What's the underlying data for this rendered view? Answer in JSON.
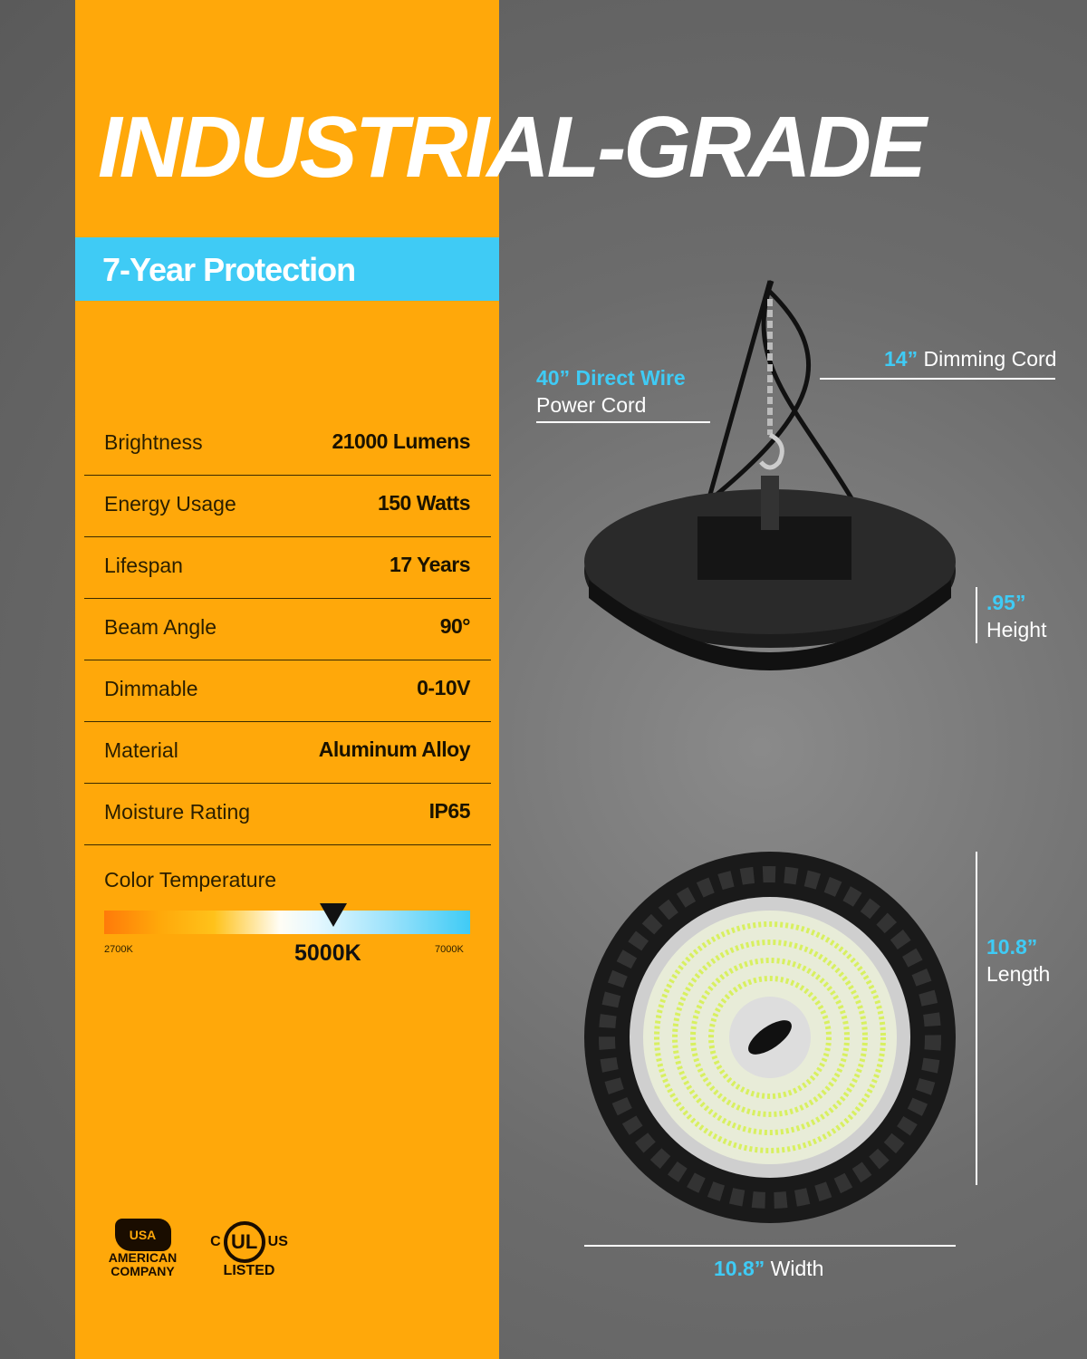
{
  "headline": "INDUSTRIAL-GRADE",
  "warranty": "7-Year Protection",
  "specs": [
    {
      "label": "Brightness",
      "value": "21000 Lumens"
    },
    {
      "label": "Energy Usage",
      "value": "150 Watts"
    },
    {
      "label": "Lifespan",
      "value": "17 Years"
    },
    {
      "label": "Beam Angle",
      "value": "90°"
    },
    {
      "label": "Dimmable",
      "value": "0-10V"
    },
    {
      "label": "Material",
      "value": "Aluminum Alloy"
    },
    {
      "label": "Moisture Rating",
      "value": "IP65"
    }
  ],
  "color_temperature": {
    "label": "Color Temperature",
    "min": "2700K",
    "max": "7000K",
    "selected": "5000K"
  },
  "annotations": {
    "power_cord": {
      "highlight": "40” Direct Wire",
      "text": "Power Cord"
    },
    "dimming_cord": {
      "highlight": "14”",
      "text": "Dimming Cord"
    },
    "height": {
      "highlight": ".95”",
      "text": "Height"
    },
    "length": {
      "highlight": "10.8”",
      "text": "Length"
    },
    "width": {
      "highlight": "10.8”",
      "text": "Width"
    }
  },
  "badges": {
    "usa": {
      "map_text": "USA",
      "text1": "AMERICAN",
      "text2": "COMPANY"
    },
    "ul": {
      "c": "C",
      "ul": "UL",
      "us": "US",
      "listed": "LISTED"
    }
  },
  "colors": {
    "panel": "#FFA80A",
    "accent": "#3FCBF5"
  }
}
